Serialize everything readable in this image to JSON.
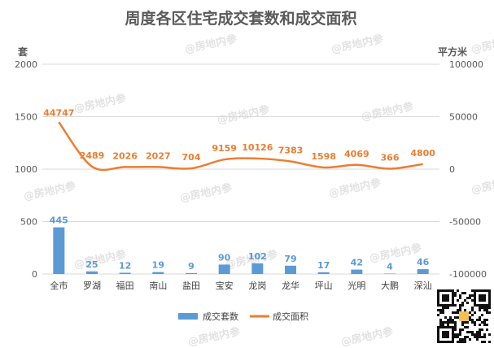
{
  "chart_data": {
    "type": "bar",
    "title": "周度各区住宅成交套数和成交面积",
    "ylabel": "套",
    "y2label": "平方米",
    "categories": [
      "全市",
      "罗湖",
      "福田",
      "南山",
      "盐田",
      "宝安",
      "龙岗",
      "龙华",
      "坪山",
      "光明",
      "大鹏",
      "深汕"
    ],
    "ylim": [
      0,
      2000
    ],
    "yticks": [
      0,
      500,
      1000,
      1500,
      2000
    ],
    "y2lim": [
      -100000,
      100000
    ],
    "y2ticks": [
      -100000,
      -50000,
      0,
      50000,
      100000
    ],
    "series": [
      {
        "name": "成交套数",
        "type": "bar",
        "axis": "left",
        "color": "#5b9bd5",
        "values": [
          445,
          25,
          12,
          19,
          9,
          90,
          102,
          79,
          17,
          42,
          4,
          46
        ]
      },
      {
        "name": "成交面积",
        "type": "line",
        "axis": "right",
        "color": "#ed7d31",
        "values": [
          44747,
          2489,
          2026,
          2027,
          704,
          9159,
          10126,
          7383,
          1598,
          4069,
          366,
          4800
        ]
      }
    ],
    "legend_position": "bottom",
    "grid": true
  },
  "watermark": "@房地内参"
}
